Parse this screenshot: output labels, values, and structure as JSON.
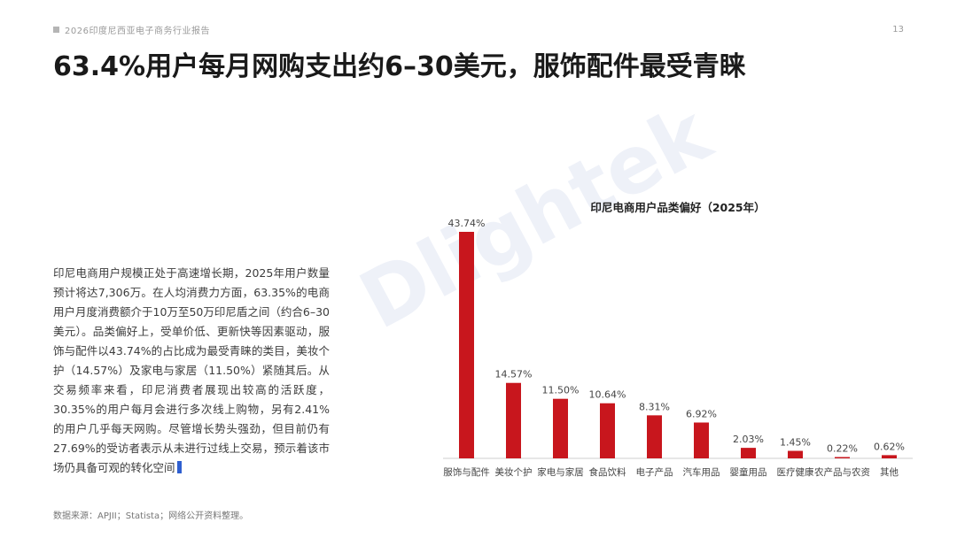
{
  "header": {
    "report_label": "2026印度尼西亚电子商务行业报告",
    "page_number": "13"
  },
  "title": "63.4%用户每月网购支出约6–30美元，服饰配件最受青睐",
  "body_paragraph": "印尼电商用户规模正处于高速增长期，2025年用户数量预计将达7,306万。在人均消费力方面，63.35%的电商用户月度消费额介于10万至50万印尼盾之间（约合6–30美元）。品类偏好上，受单价低、更新快等因素驱动，服饰与配件以43.74%的占比成为最受青睐的类目，美妆个护（14.57%）及家电与家居（11.50%）紧随其后。从交易频率来看，印尼消费者展现出较高的活跃度，30.35%的用户每月会进行多次线上购物，另有2.41%的用户几乎每天网购。尽管增长势头强劲，但目前仍有27.69%的受访者表示从未进行过线上交易，预示着该市场仍具备可观的转化空间",
  "source": "数据来源：APJII；Statista；网络公开资料整理。",
  "watermark": "Dlightek",
  "bar_color": "#c8161d",
  "chart_data": {
    "type": "bar",
    "title": "印尼电商用户品类偏好（2025年）",
    "categories": [
      "服饰与配件",
      "美妆个护",
      "家电与家居",
      "食品饮料",
      "电子产品",
      "汽车用品",
      "婴童用品",
      "医疗健康",
      "农产品与农资",
      "其他"
    ],
    "values": [
      43.74,
      14.57,
      11.5,
      10.64,
      8.31,
      6.92,
      2.03,
      1.45,
      0.22,
      0.62
    ],
    "value_labels": [
      "43.74%",
      "14.57%",
      "11.50%",
      "10.64%",
      "8.31%",
      "6.92%",
      "2.03%",
      "1.45%",
      "0.22%",
      "0.62%"
    ],
    "ylim": [
      0,
      45
    ],
    "xlabel": "",
    "ylabel": ""
  }
}
